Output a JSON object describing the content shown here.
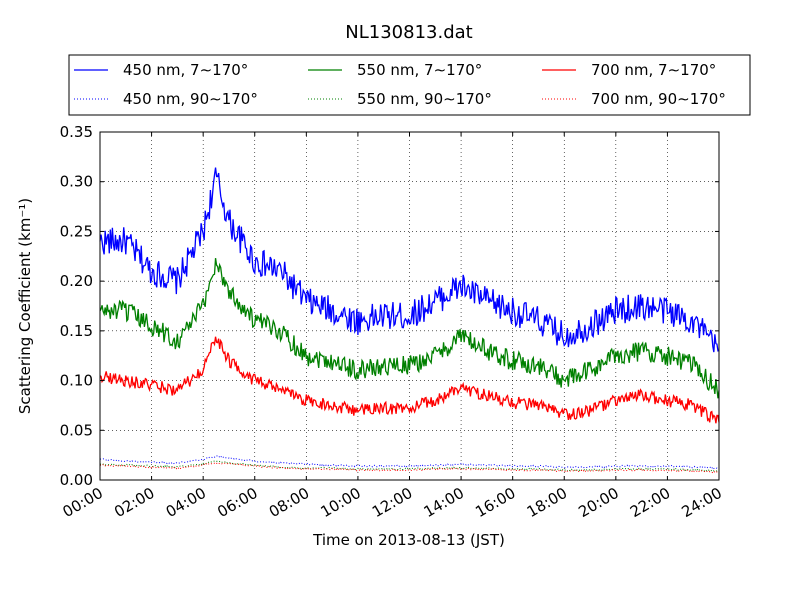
{
  "chart_data": {
    "type": "line",
    "title": "NL130813.dat",
    "xlabel": "Time on 2013-08-13 (JST)",
    "ylabel": "Scattering Coefficient (km⁻¹)",
    "xlim": [
      "2013-08-13 00:00",
      "2013-08-14 00:00"
    ],
    "ylim": [
      0.0,
      0.35
    ],
    "grid": true,
    "legend_position": "top",
    "x_tick_labels": [
      "00:00",
      "02:00",
      "04:00",
      "06:00",
      "08:00",
      "10:00",
      "12:00",
      "14:00",
      "16:00",
      "18:00",
      "20:00",
      "22:00",
      "24:00"
    ],
    "y_tick_labels": [
      "0.00",
      "0.05",
      "0.10",
      "0.15",
      "0.20",
      "0.25",
      "0.30",
      "0.35"
    ],
    "x": [
      "00:00",
      "01:00",
      "02:00",
      "03:00",
      "04:00",
      "04:30",
      "05:00",
      "06:00",
      "07:00",
      "08:00",
      "09:00",
      "10:00",
      "11:00",
      "12:00",
      "13:00",
      "14:00",
      "15:00",
      "16:00",
      "17:00",
      "18:00",
      "19:00",
      "20:00",
      "21:00",
      "22:00",
      "23:00",
      "24:00"
    ],
    "series": [
      {
        "name": "450 nm, 7∼170°",
        "color": "#0000ff",
        "style": "solid",
        "values": [
          0.24,
          0.24,
          0.21,
          0.2,
          0.25,
          0.305,
          0.26,
          0.22,
          0.21,
          0.18,
          0.17,
          0.16,
          0.165,
          0.165,
          0.18,
          0.195,
          0.18,
          0.17,
          0.16,
          0.145,
          0.155,
          0.17,
          0.175,
          0.17,
          0.16,
          0.13
        ]
      },
      {
        "name": "450 nm, 90∼170°",
        "color": "#0000ff",
        "style": "dotted",
        "values": [
          0.021,
          0.019,
          0.018,
          0.017,
          0.021,
          0.024,
          0.022,
          0.019,
          0.017,
          0.016,
          0.015,
          0.014,
          0.014,
          0.014,
          0.015,
          0.016,
          0.015,
          0.014,
          0.014,
          0.013,
          0.013,
          0.014,
          0.014,
          0.014,
          0.013,
          0.012
        ]
      },
      {
        "name": "550 nm, 7∼170°",
        "color": "#008000",
        "style": "solid",
        "values": [
          0.17,
          0.17,
          0.155,
          0.14,
          0.175,
          0.22,
          0.19,
          0.16,
          0.15,
          0.125,
          0.12,
          0.11,
          0.115,
          0.115,
          0.125,
          0.145,
          0.13,
          0.12,
          0.115,
          0.1,
          0.11,
          0.125,
          0.13,
          0.125,
          0.115,
          0.09
        ]
      },
      {
        "name": "550 nm, 90∼170°",
        "color": "#008000",
        "style": "dotted",
        "values": [
          0.016,
          0.015,
          0.014,
          0.013,
          0.016,
          0.019,
          0.017,
          0.015,
          0.013,
          0.012,
          0.012,
          0.011,
          0.011,
          0.011,
          0.012,
          0.012,
          0.012,
          0.011,
          0.011,
          0.01,
          0.01,
          0.011,
          0.011,
          0.011,
          0.01,
          0.009
        ]
      },
      {
        "name": "700 nm, 7∼170°",
        "color": "#ff0000",
        "style": "solid",
        "values": [
          0.105,
          0.1,
          0.095,
          0.09,
          0.11,
          0.145,
          0.12,
          0.1,
          0.09,
          0.08,
          0.075,
          0.07,
          0.072,
          0.072,
          0.08,
          0.093,
          0.085,
          0.078,
          0.075,
          0.065,
          0.07,
          0.08,
          0.085,
          0.08,
          0.075,
          0.058
        ]
      },
      {
        "name": "700 nm, 90∼170°",
        "color": "#ff0000",
        "style": "dotted",
        "values": [
          0.015,
          0.014,
          0.013,
          0.012,
          0.015,
          0.017,
          0.016,
          0.014,
          0.012,
          0.011,
          0.011,
          0.01,
          0.01,
          0.01,
          0.011,
          0.011,
          0.011,
          0.01,
          0.01,
          0.009,
          0.009,
          0.01,
          0.01,
          0.01,
          0.009,
          0.008
        ]
      }
    ]
  }
}
